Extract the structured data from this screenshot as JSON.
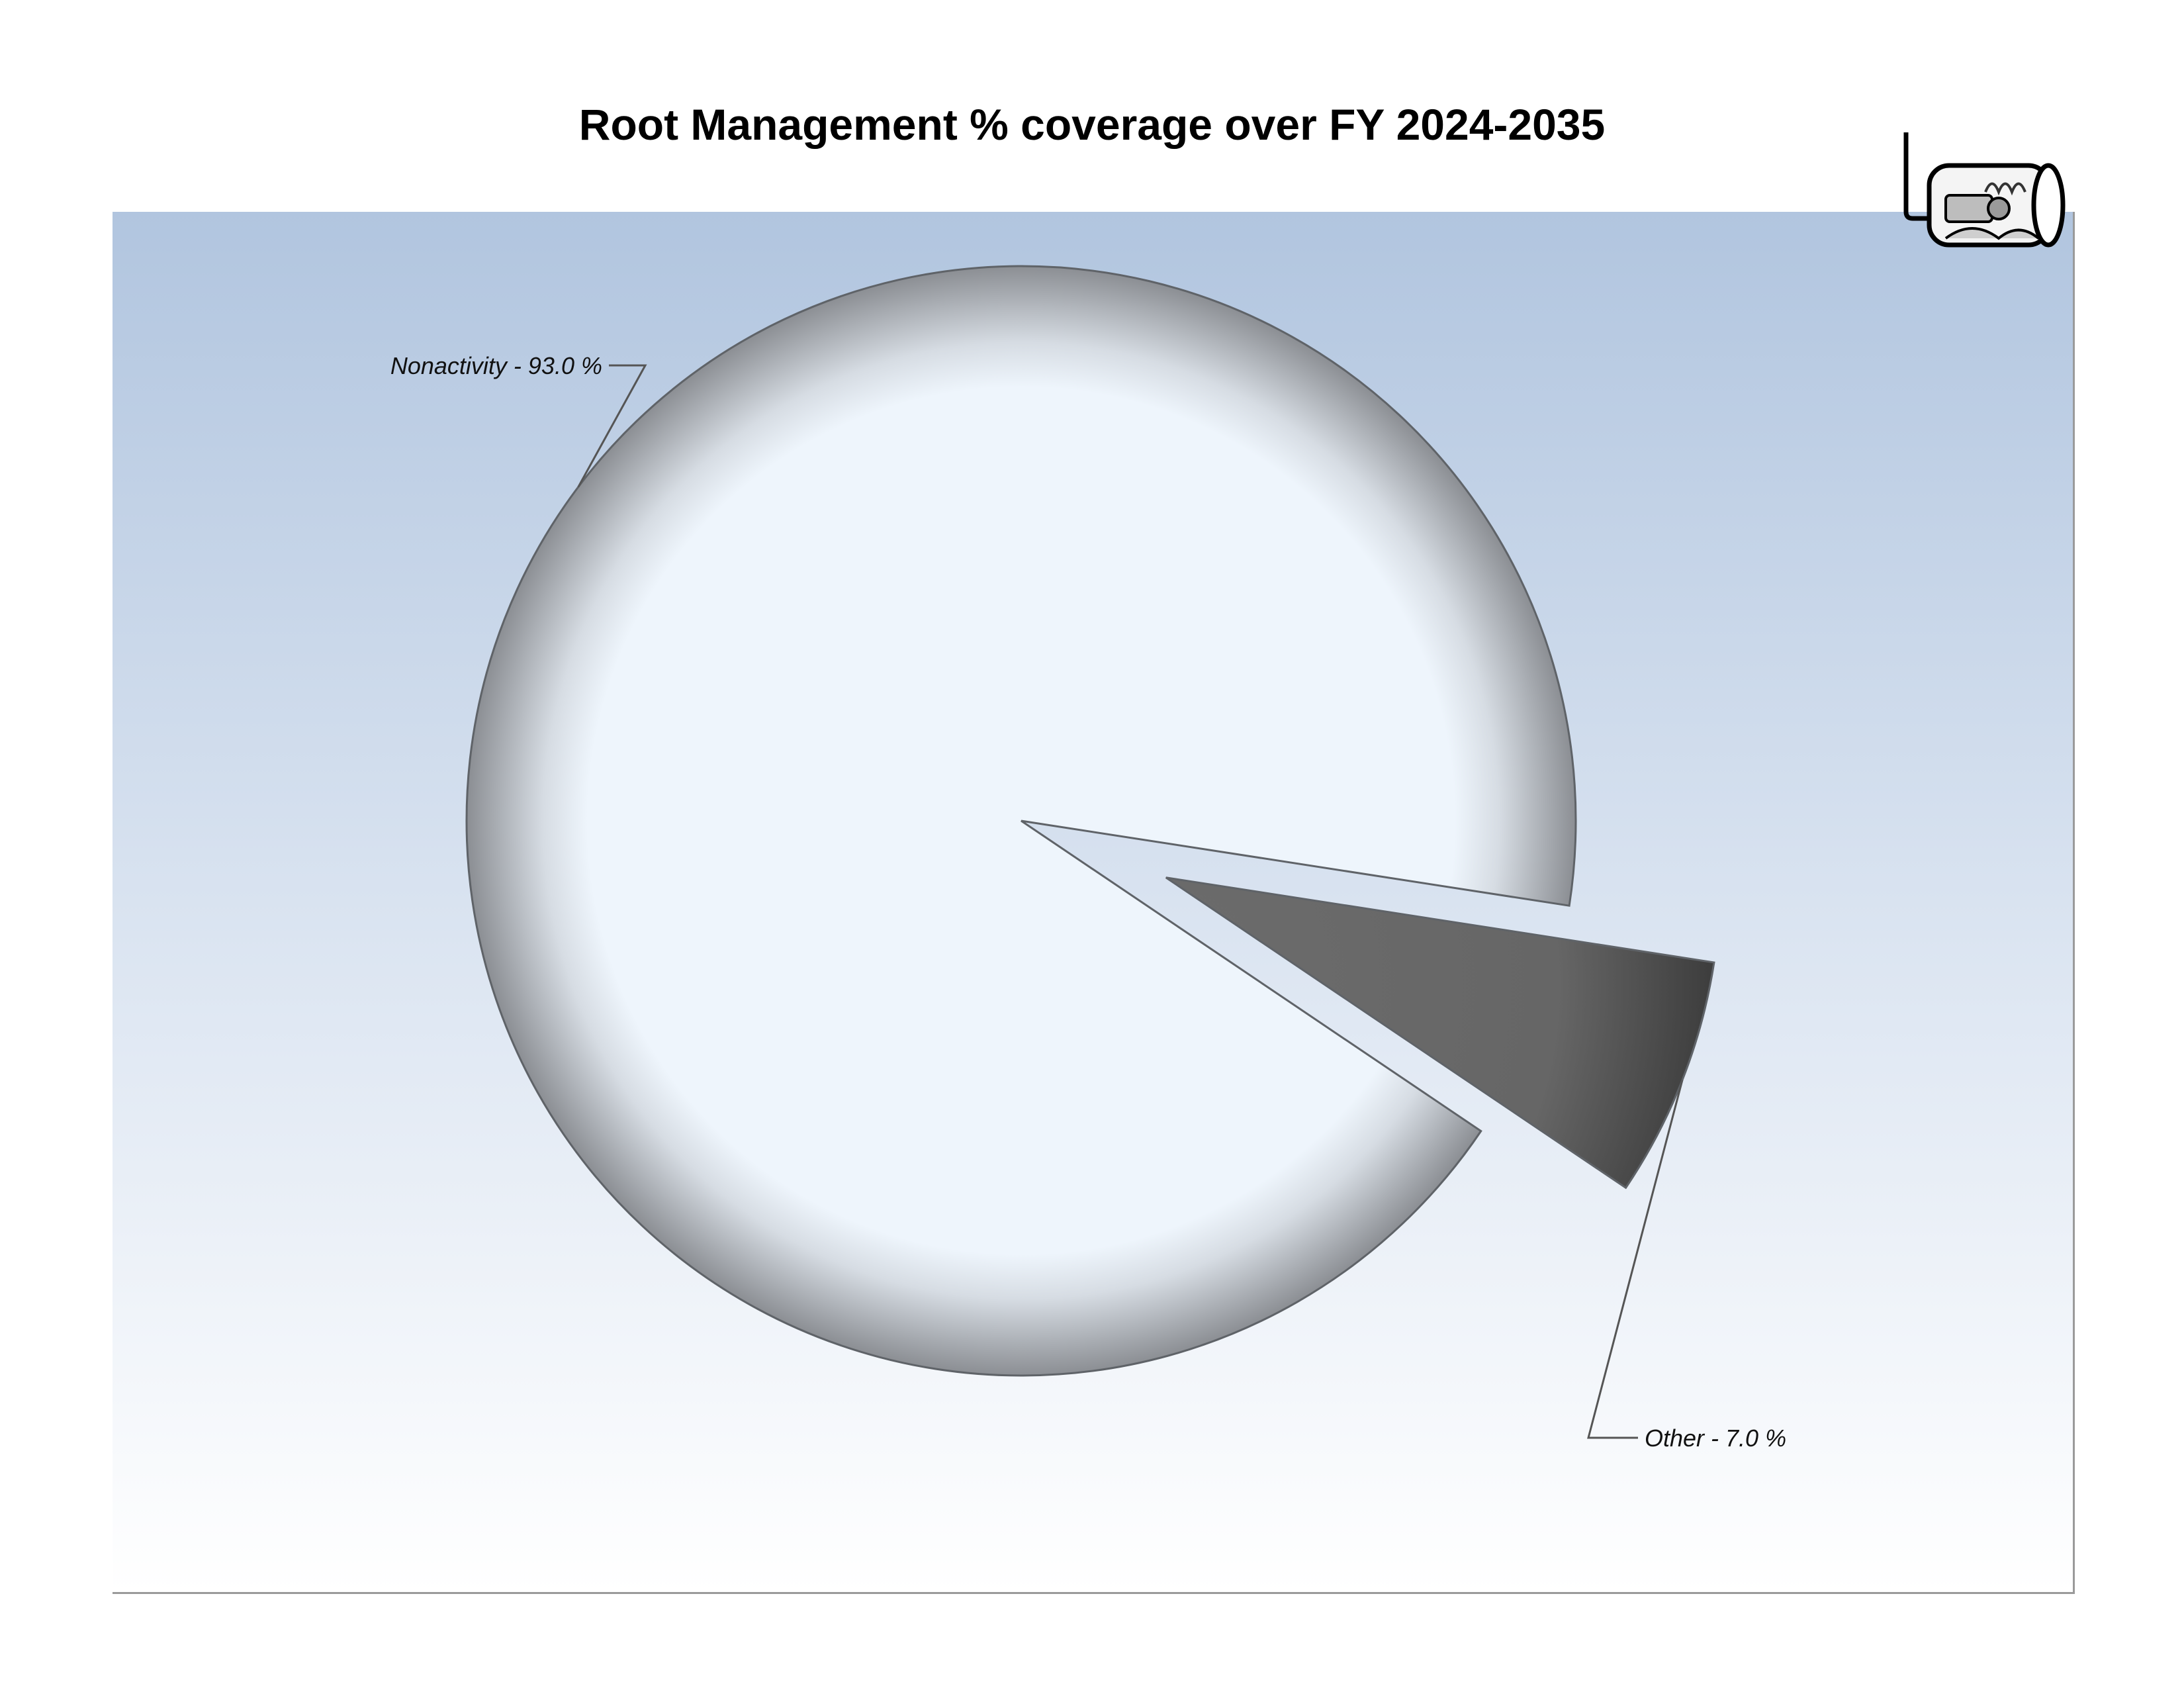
{
  "chart_data": {
    "type": "pie",
    "title": "Root Management % coverage over FY 2024-2035",
    "slices": [
      {
        "name": "Nonactivity",
        "value": 93.0,
        "label": "Nonactivity - 93.0 %",
        "color": "#eef5fc",
        "exploded": false
      },
      {
        "name": "Other",
        "value": 7.0,
        "label": "Other - 7.0 %",
        "color": "#6a6a6a",
        "exploded": true
      }
    ],
    "start_angle_deg": 124,
    "grid": false,
    "legend": "none"
  },
  "logo": {
    "icon": "pipe-camera-inspection-icon"
  }
}
